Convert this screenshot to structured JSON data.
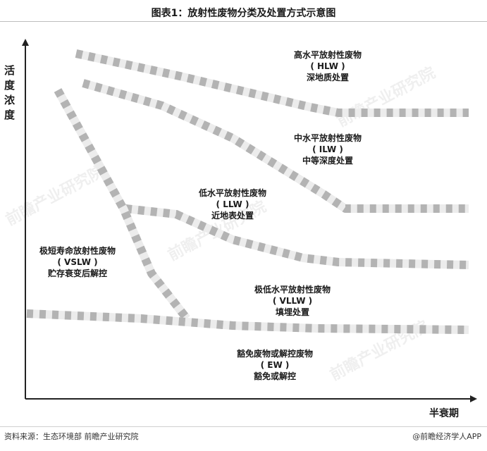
{
  "title": "图表1：放射性废物分类及处置方式示意图",
  "y_axis_label": [
    "活",
    "度",
    "浓",
    "度"
  ],
  "x_axis_label": "半衰期",
  "zones": {
    "hlw": {
      "name": "高水平放射性废物",
      "abbr": "( HLW )",
      "disposal": "深地质处置"
    },
    "ilw": {
      "name": "中水平放射性废物",
      "abbr": "( ILW )",
      "disposal": "中等深度处置"
    },
    "llw": {
      "name": "低水平放射性废物",
      "abbr": "( LLW )",
      "disposal": "近地表处置"
    },
    "vslw": {
      "name": "极短寿命放射性废物",
      "abbr": "( VSLW )",
      "disposal": "贮存衰变后解控"
    },
    "vllw": {
      "name": "极低水平放射性废物",
      "abbr": "( VLLW )",
      "disposal": "填埋处置"
    },
    "ew": {
      "name": "豁免废物或解控废物",
      "abbr": "( EW )",
      "disposal": "豁免或解控"
    }
  },
  "watermark": "前瞻产业研究院",
  "footer": {
    "source": "资料来源：生态环境部 前瞻产业研究院",
    "brand": "@前瞻经济学人APP"
  },
  "colors": {
    "band_dark": "#b5b5b5",
    "band_light": "#ededed",
    "axis": "#222222"
  }
}
